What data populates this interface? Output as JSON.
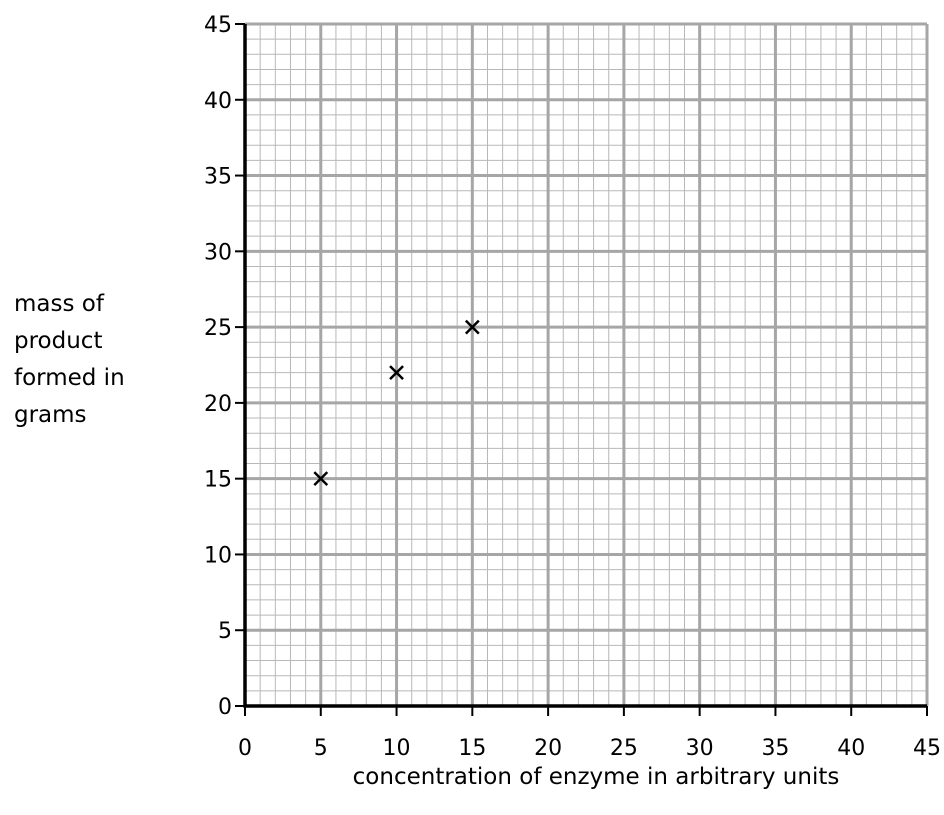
{
  "chart_data": {
    "type": "scatter",
    "title": "",
    "xlabel": "concentration of enzyme in arbitrary units",
    "ylabel_lines": [
      "mass of",
      "product",
      "formed in",
      "grams"
    ],
    "xlim": [
      0,
      45
    ],
    "ylim": [
      0,
      45
    ],
    "x_ticks": [
      0,
      5,
      10,
      15,
      20,
      25,
      30,
      35,
      40,
      45
    ],
    "y_ticks": [
      0,
      5,
      10,
      15,
      20,
      25,
      30,
      35,
      40,
      45
    ],
    "x_minor_step": 1,
    "y_minor_step": 1,
    "grid": true,
    "marker": "x",
    "points": [
      {
        "x": 5,
        "y": 15
      },
      {
        "x": 10,
        "y": 22
      },
      {
        "x": 15,
        "y": 25
      }
    ]
  }
}
